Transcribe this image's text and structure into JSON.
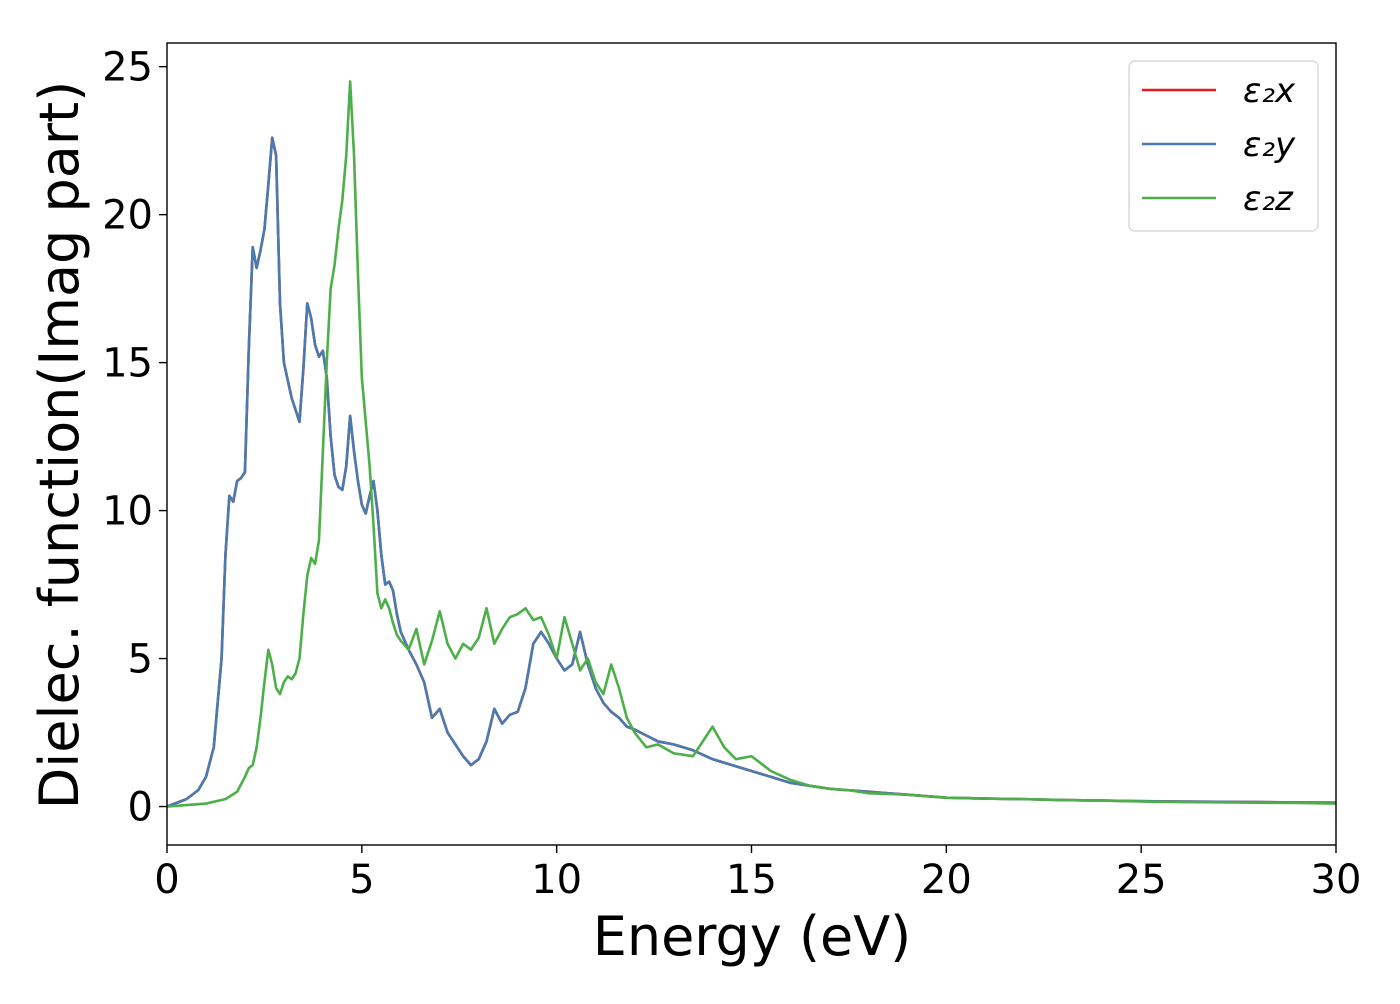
{
  "chart_data": {
    "type": "line",
    "title": "",
    "xlabel": "Energy (eV)",
    "ylabel": "Dielec. function(Imag part)",
    "xlim": [
      0,
      30
    ],
    "ylim": [
      -1.3,
      25.8
    ],
    "xticks": [
      0,
      5,
      10,
      15,
      20,
      25,
      30
    ],
    "yticks": [
      0,
      5,
      10,
      15,
      20,
      25
    ],
    "xtick_labels": [
      "0",
      "5",
      "10",
      "15",
      "20",
      "25",
      "30"
    ],
    "ytick_labels": [
      "0",
      "5",
      "10",
      "15",
      "20",
      "25"
    ],
    "grid": false,
    "legend_position": "top-right",
    "series": [
      {
        "name": "ε₂x",
        "color": "#e41a1c",
        "x": [
          0,
          0.5,
          0.8,
          1.0,
          1.2,
          1.4,
          1.5,
          1.6,
          1.7,
          1.8,
          1.9,
          2.0,
          2.1,
          2.2,
          2.3,
          2.4,
          2.5,
          2.6,
          2.7,
          2.8,
          2.9,
          3.0,
          3.2,
          3.4,
          3.5,
          3.6,
          3.7,
          3.8,
          3.9,
          4.0,
          4.1,
          4.2,
          4.3,
          4.4,
          4.5,
          4.6,
          4.7,
          4.8,
          4.9,
          5.0,
          5.1,
          5.2,
          5.3,
          5.4,
          5.5,
          5.6,
          5.7,
          5.8,
          5.9,
          6.0,
          6.2,
          6.4,
          6.6,
          6.8,
          7.0,
          7.2,
          7.4,
          7.6,
          7.8,
          8.0,
          8.2,
          8.4,
          8.6,
          8.8,
          9.0,
          9.2,
          9.4,
          9.6,
          9.8,
          10.0,
          10.2,
          10.4,
          10.6,
          10.8,
          11.0,
          11.2,
          11.4,
          11.6,
          11.8,
          12.0,
          12.3,
          12.6,
          13.0,
          13.5,
          14.0,
          14.5,
          15.0,
          15.5,
          16.0,
          16.5,
          17.0,
          17.5,
          18.0,
          19.0,
          20.0,
          21.0,
          22.0,
          23.0,
          24.0,
          25.0,
          26.0,
          27.0,
          28.0,
          29.0,
          30.0
        ],
        "y": [
          0.0,
          0.25,
          0.55,
          1.0,
          2.0,
          5.0,
          8.5,
          10.5,
          10.3,
          11.0,
          11.1,
          11.3,
          15.5,
          18.9,
          18.2,
          18.8,
          19.5,
          21.0,
          22.6,
          22.0,
          17.0,
          15.0,
          13.8,
          13.0,
          14.8,
          17.0,
          16.5,
          15.6,
          15.2,
          15.4,
          14.5,
          12.5,
          11.2,
          10.8,
          10.7,
          11.5,
          13.2,
          12.0,
          11.0,
          10.2,
          9.9,
          10.5,
          11.0,
          10.0,
          8.5,
          7.5,
          7.6,
          7.3,
          6.5,
          5.9,
          5.3,
          4.8,
          4.2,
          3.0,
          3.3,
          2.5,
          2.1,
          1.7,
          1.4,
          1.6,
          2.2,
          3.3,
          2.8,
          3.1,
          3.2,
          4.0,
          5.5,
          5.9,
          5.5,
          5.0,
          4.6,
          4.8,
          5.9,
          4.8,
          4.0,
          3.5,
          3.2,
          3.0,
          2.7,
          2.6,
          2.4,
          2.2,
          2.1,
          1.9,
          1.6,
          1.4,
          1.2,
          1.0,
          0.8,
          0.7,
          0.6,
          0.55,
          0.5,
          0.4,
          0.3,
          0.27,
          0.25,
          0.22,
          0.2,
          0.18,
          0.17,
          0.16,
          0.15,
          0.14,
          0.13
        ]
      },
      {
        "name": "ε₂y",
        "color": "#4a7bb0",
        "x": [
          0,
          0.5,
          0.8,
          1.0,
          1.2,
          1.4,
          1.5,
          1.6,
          1.7,
          1.8,
          1.9,
          2.0,
          2.1,
          2.2,
          2.3,
          2.4,
          2.5,
          2.6,
          2.7,
          2.8,
          2.9,
          3.0,
          3.2,
          3.4,
          3.5,
          3.6,
          3.7,
          3.8,
          3.9,
          4.0,
          4.1,
          4.2,
          4.3,
          4.4,
          4.5,
          4.6,
          4.7,
          4.8,
          4.9,
          5.0,
          5.1,
          5.2,
          5.3,
          5.4,
          5.5,
          5.6,
          5.7,
          5.8,
          5.9,
          6.0,
          6.2,
          6.4,
          6.6,
          6.8,
          7.0,
          7.2,
          7.4,
          7.6,
          7.8,
          8.0,
          8.2,
          8.4,
          8.6,
          8.8,
          9.0,
          9.2,
          9.4,
          9.6,
          9.8,
          10.0,
          10.2,
          10.4,
          10.6,
          10.8,
          11.0,
          11.2,
          11.4,
          11.6,
          11.8,
          12.0,
          12.3,
          12.6,
          13.0,
          13.5,
          14.0,
          14.5,
          15.0,
          15.5,
          16.0,
          16.5,
          17.0,
          17.5,
          18.0,
          19.0,
          20.0,
          21.0,
          22.0,
          23.0,
          24.0,
          25.0,
          26.0,
          27.0,
          28.0,
          29.0,
          30.0
        ],
        "y": [
          0.0,
          0.25,
          0.55,
          1.0,
          2.0,
          5.0,
          8.5,
          10.5,
          10.3,
          11.0,
          11.1,
          11.3,
          15.5,
          18.9,
          18.2,
          18.8,
          19.5,
          21.0,
          22.6,
          22.0,
          17.0,
          15.0,
          13.8,
          13.0,
          14.8,
          17.0,
          16.5,
          15.6,
          15.2,
          15.4,
          14.5,
          12.5,
          11.2,
          10.8,
          10.7,
          11.5,
          13.2,
          12.0,
          11.0,
          10.2,
          9.9,
          10.5,
          11.0,
          10.0,
          8.5,
          7.5,
          7.6,
          7.3,
          6.5,
          5.9,
          5.3,
          4.8,
          4.2,
          3.0,
          3.3,
          2.5,
          2.1,
          1.7,
          1.4,
          1.6,
          2.2,
          3.3,
          2.8,
          3.1,
          3.2,
          4.0,
          5.5,
          5.9,
          5.5,
          5.0,
          4.6,
          4.8,
          5.9,
          4.8,
          4.0,
          3.5,
          3.2,
          3.0,
          2.7,
          2.6,
          2.4,
          2.2,
          2.1,
          1.9,
          1.6,
          1.4,
          1.2,
          1.0,
          0.8,
          0.7,
          0.6,
          0.55,
          0.5,
          0.4,
          0.3,
          0.27,
          0.25,
          0.22,
          0.2,
          0.18,
          0.17,
          0.16,
          0.15,
          0.14,
          0.13
        ]
      },
      {
        "name": "ε₂z",
        "color": "#4daf4a",
        "x": [
          0,
          0.5,
          1.0,
          1.5,
          1.8,
          2.0,
          2.1,
          2.2,
          2.3,
          2.4,
          2.5,
          2.6,
          2.7,
          2.8,
          2.9,
          3.0,
          3.1,
          3.2,
          3.3,
          3.4,
          3.5,
          3.6,
          3.7,
          3.8,
          3.9,
          4.0,
          4.1,
          4.2,
          4.3,
          4.4,
          4.5,
          4.6,
          4.7,
          4.8,
          4.9,
          5.0,
          5.1,
          5.2,
          5.3,
          5.4,
          5.5,
          5.6,
          5.7,
          5.8,
          5.9,
          6.0,
          6.2,
          6.4,
          6.6,
          6.8,
          7.0,
          7.2,
          7.4,
          7.6,
          7.8,
          8.0,
          8.2,
          8.4,
          8.6,
          8.8,
          9.0,
          9.2,
          9.4,
          9.6,
          9.8,
          10.0,
          10.2,
          10.4,
          10.6,
          10.8,
          11.0,
          11.2,
          11.4,
          11.6,
          11.8,
          12.0,
          12.3,
          12.6,
          13.0,
          13.5,
          14.0,
          14.3,
          14.6,
          15.0,
          15.5,
          16.0,
          16.5,
          17.0,
          17.5,
          18.0,
          19.0,
          20.0,
          21.0,
          22.0,
          23.0,
          24.0,
          25.0,
          26.0,
          27.0,
          28.0,
          29.0,
          30.0
        ],
        "y": [
          0.0,
          0.05,
          0.1,
          0.25,
          0.5,
          1.0,
          1.3,
          1.4,
          2.0,
          3.0,
          4.2,
          5.3,
          4.8,
          4.0,
          3.8,
          4.2,
          4.4,
          4.3,
          4.5,
          5.0,
          6.5,
          7.8,
          8.4,
          8.2,
          9.0,
          12.0,
          15.0,
          17.5,
          18.3,
          19.5,
          20.5,
          22.0,
          24.5,
          22.0,
          18.0,
          14.5,
          13.0,
          11.5,
          9.5,
          7.2,
          6.7,
          7.0,
          6.7,
          6.2,
          5.8,
          5.6,
          5.3,
          6.0,
          4.8,
          5.6,
          6.6,
          5.5,
          5.0,
          5.5,
          5.3,
          5.7,
          6.7,
          5.5,
          6.0,
          6.4,
          6.5,
          6.7,
          6.3,
          6.4,
          5.8,
          5.0,
          6.4,
          5.5,
          4.6,
          5.0,
          4.2,
          3.8,
          4.8,
          4.0,
          3.0,
          2.5,
          2.0,
          2.1,
          1.8,
          1.7,
          2.7,
          2.0,
          1.6,
          1.7,
          1.2,
          0.9,
          0.7,
          0.6,
          0.55,
          0.45,
          0.4,
          0.3,
          0.27,
          0.25,
          0.22,
          0.2,
          0.17,
          0.15,
          0.14,
          0.13,
          0.12,
          0.1
        ]
      }
    ]
  }
}
